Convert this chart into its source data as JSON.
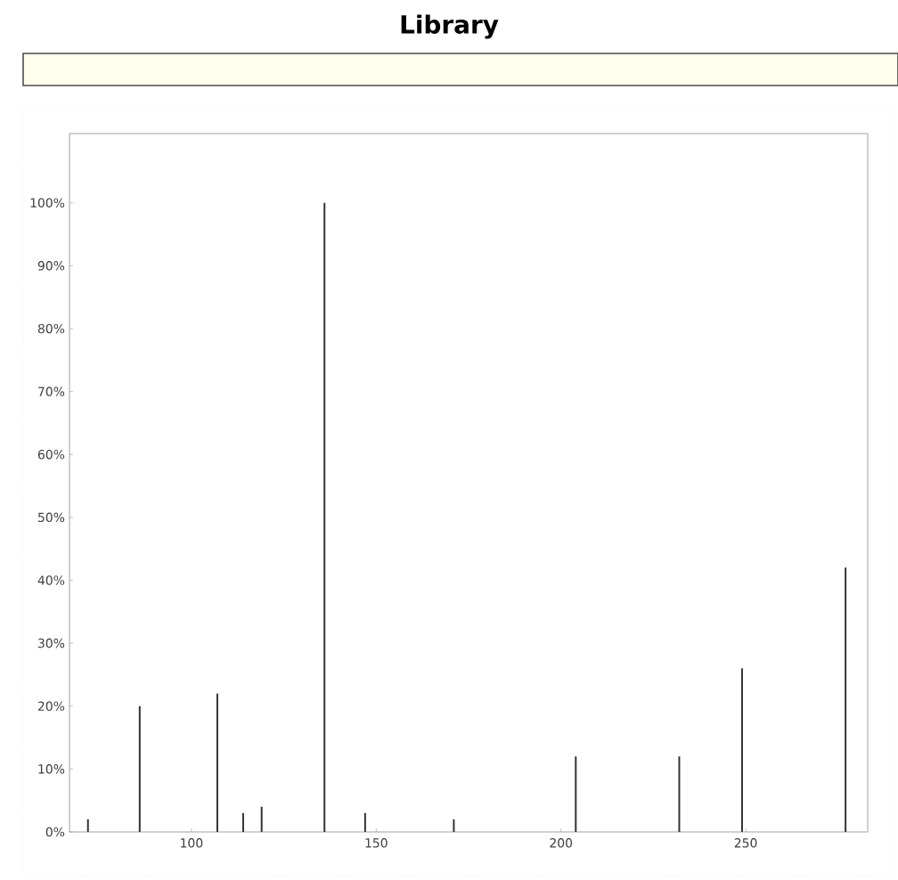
{
  "chart_data": {
    "type": "bar",
    "title": "Library",
    "x": [
      72,
      86,
      107,
      114,
      119,
      136,
      147,
      171,
      204,
      232,
      249,
      277
    ],
    "values": [
      2,
      20,
      22,
      3,
      4,
      100,
      3,
      2,
      12,
      12,
      26,
      42
    ],
    "color": "#333333",
    "xlim": [
      67,
      283
    ],
    "xticks": [
      100,
      150,
      200,
      250
    ],
    "ylim": [
      0,
      111
    ],
    "yticks": [
      {
        "value": 0,
        "label": "0%"
      },
      {
        "value": 10,
        "label": "10%"
      },
      {
        "value": 20,
        "label": "20%"
      },
      {
        "value": 30,
        "label": "30%"
      },
      {
        "value": 40,
        "label": "40%"
      },
      {
        "value": 50,
        "label": "50%"
      },
      {
        "value": 60,
        "label": "60%"
      },
      {
        "value": 70,
        "label": "70%"
      },
      {
        "value": 80,
        "label": "80%"
      },
      {
        "value": 90,
        "label": "90%"
      },
      {
        "value": 100,
        "label": "100%"
      }
    ]
  }
}
